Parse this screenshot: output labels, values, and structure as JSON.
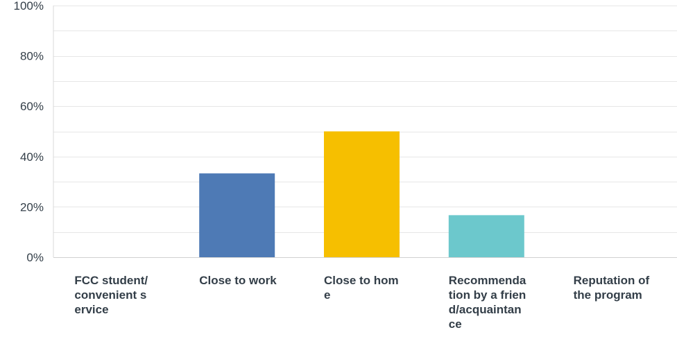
{
  "chart_data": {
    "type": "bar",
    "categories": [
      "FCC student/convenient service",
      "Close to work",
      "Close to home",
      "Recommendation by a friend/acquaintance",
      "Reputation of the program"
    ],
    "values": [
      0,
      33.3,
      50,
      16.7,
      0
    ],
    "colors": [
      "#4e7ab5",
      "#4e7ab5",
      "#f6bf00",
      "#6cc8cc",
      "#4e7ab5"
    ],
    "y_ticks": [
      "0%",
      "20%",
      "40%",
      "60%",
      "80%",
      "100%"
    ],
    "ylim": [
      0,
      100
    ],
    "grid": true,
    "title": "",
    "xlabel": "",
    "ylabel": ""
  }
}
